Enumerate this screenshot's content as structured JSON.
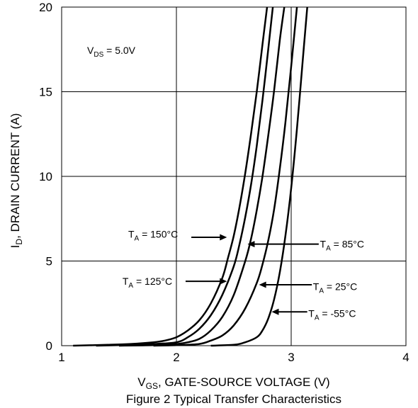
{
  "chart_data": {
    "type": "line",
    "title": "",
    "caption": "Figure 2 Typical Transfer Characteristics",
    "xlabel": {
      "main": "V",
      "sub": "GS",
      "rest": ", GATE-SOURCE VOLTAGE (V)"
    },
    "ylabel": {
      "main": "I",
      "sub": "D",
      "rest": ", DRAIN CURRENT (A)"
    },
    "xlim": [
      1,
      4
    ],
    "ylim": [
      0,
      20
    ],
    "x_ticks": [
      "1",
      "2",
      "3",
      "4"
    ],
    "y_ticks": [
      "0",
      "5",
      "10",
      "15",
      "20"
    ],
    "grid": true,
    "condition": {
      "main": "V",
      "sub": "DS",
      "rest": " = 5.0V"
    },
    "series": [
      {
        "name": "T_A = 150°C",
        "label": {
          "main": "T",
          "sub": "A",
          "rest": " = 150°C"
        },
        "x": [
          1.1,
          1.4,
          1.6,
          1.8,
          1.9,
          2.0,
          2.1,
          2.2,
          2.3,
          2.4,
          2.45,
          2.5,
          2.55,
          2.6,
          2.65,
          2.7,
          2.75,
          2.79
        ],
        "y": [
          0.0,
          0.05,
          0.1,
          0.2,
          0.3,
          0.5,
          0.9,
          1.5,
          2.5,
          4.0,
          5.2,
          6.5,
          8.2,
          10.2,
          12.5,
          15.0,
          17.8,
          20
        ]
      },
      {
        "name": "T_A = 125°C",
        "label": {
          "main": "T",
          "sub": "A",
          "rest": " = 125°C"
        },
        "x": [
          1.3,
          1.6,
          1.8,
          2.0,
          2.1,
          2.2,
          2.3,
          2.4,
          2.5,
          2.55,
          2.6,
          2.65,
          2.7,
          2.75,
          2.8,
          2.84
        ],
        "y": [
          0.0,
          0.05,
          0.1,
          0.2,
          0.5,
          1.0,
          1.8,
          3.0,
          4.7,
          6.0,
          7.6,
          9.5,
          11.8,
          14.5,
          17.5,
          20
        ]
      },
      {
        "name": "T_A = 85°C",
        "label": {
          "main": "T",
          "sub": "A",
          "rest": " = 85°C"
        },
        "x": [
          1.5,
          1.8,
          2.0,
          2.1,
          2.2,
          2.3,
          2.4,
          2.5,
          2.6,
          2.65,
          2.7,
          2.75,
          2.8,
          2.85,
          2.9,
          2.94
        ],
        "y": [
          0.0,
          0.03,
          0.1,
          0.2,
          0.4,
          0.9,
          1.7,
          3.0,
          5.0,
          6.3,
          8.0,
          10.0,
          12.4,
          15.0,
          18.0,
          20
        ]
      },
      {
        "name": "T_A = 25°C",
        "label": {
          "main": "T",
          "sub": "A",
          "rest": " = 25°C"
        },
        "x": [
          1.8,
          2.0,
          2.2,
          2.3,
          2.4,
          2.5,
          2.6,
          2.7,
          2.75,
          2.8,
          2.85,
          2.9,
          2.95,
          3.0,
          3.05
        ],
        "y": [
          0.0,
          0.03,
          0.1,
          0.3,
          0.6,
          1.2,
          2.2,
          3.7,
          4.8,
          6.2,
          8.0,
          10.4,
          13.2,
          16.5,
          20
        ]
      },
      {
        "name": "T_A = -55°C",
        "label": {
          "main": "T",
          "sub": "A",
          "rest": " = -55°C"
        },
        "x": [
          2.3,
          2.5,
          2.6,
          2.7,
          2.75,
          2.8,
          2.85,
          2.9,
          2.95,
          3.0,
          3.05,
          3.1,
          3.14
        ],
        "y": [
          0.0,
          0.05,
          0.2,
          0.5,
          0.9,
          1.6,
          2.7,
          4.3,
          6.5,
          9.3,
          12.8,
          16.8,
          20
        ]
      }
    ],
    "annotations": [
      {
        "series": 0,
        "text_x": 1.58,
        "text_y": 6.6,
        "arrow_from_x": 2.13,
        "arrow_to_x": 2.44,
        "arrow_y": 6.4,
        "side": "left"
      },
      {
        "series": 2,
        "text_x": 3.25,
        "text_y": 6.0,
        "arrow_from_x": 3.24,
        "arrow_to_x": 2.62,
        "arrow_y": 6.0,
        "side": "right"
      },
      {
        "series": 1,
        "text_x": 1.53,
        "text_y": 3.8,
        "arrow_from_x": 2.08,
        "arrow_to_x": 2.44,
        "arrow_y": 3.8,
        "side": "left"
      },
      {
        "series": 3,
        "text_x": 3.19,
        "text_y": 3.5,
        "arrow_from_x": 3.18,
        "arrow_to_x": 2.72,
        "arrow_y": 3.6,
        "side": "right"
      },
      {
        "series": 4,
        "text_x": 3.15,
        "text_y": 1.9,
        "arrow_from_x": 3.14,
        "arrow_to_x": 2.83,
        "arrow_y": 2.0,
        "side": "right"
      }
    ]
  }
}
